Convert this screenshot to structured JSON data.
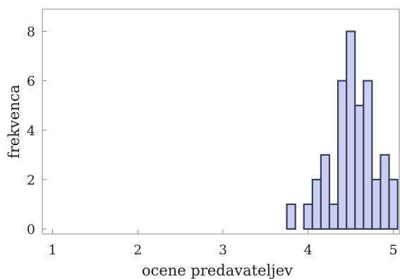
{
  "chart_data": {
    "type": "bar",
    "subtype": "histogram",
    "xlabel": "ocene predavateljev",
    "ylabel": "frekvenca",
    "xlim": [
      0.88,
      5.07
    ],
    "ylim": [
      -0.2,
      8.9
    ],
    "x_ticks": [
      "1",
      "2",
      "3",
      "4",
      "5"
    ],
    "y_ticks": [
      "0",
      "2",
      "4",
      "6",
      "8"
    ],
    "bin_width": 0.1,
    "bins": [
      {
        "start": 3.75,
        "end": 3.85,
        "value": 1
      },
      {
        "start": 3.95,
        "end": 4.05,
        "value": 1
      },
      {
        "start": 4.05,
        "end": 4.15,
        "value": 2
      },
      {
        "start": 4.15,
        "end": 4.25,
        "value": 3
      },
      {
        "start": 4.25,
        "end": 4.35,
        "value": 1
      },
      {
        "start": 4.35,
        "end": 4.45,
        "value": 6
      },
      {
        "start": 4.45,
        "end": 4.55,
        "value": 8
      },
      {
        "start": 4.55,
        "end": 4.65,
        "value": 5
      },
      {
        "start": 4.65,
        "end": 4.75,
        "value": 6
      },
      {
        "start": 4.75,
        "end": 4.85,
        "value": 2
      },
      {
        "start": 4.85,
        "end": 4.95,
        "value": 3
      },
      {
        "start": 4.95,
        "end": 5.05,
        "value": 2
      }
    ],
    "grid": false,
    "legend": "none",
    "bar_fill": "#c8cff2",
    "bar_stroke": "#3a3f55",
    "axis_color": "#888888"
  }
}
